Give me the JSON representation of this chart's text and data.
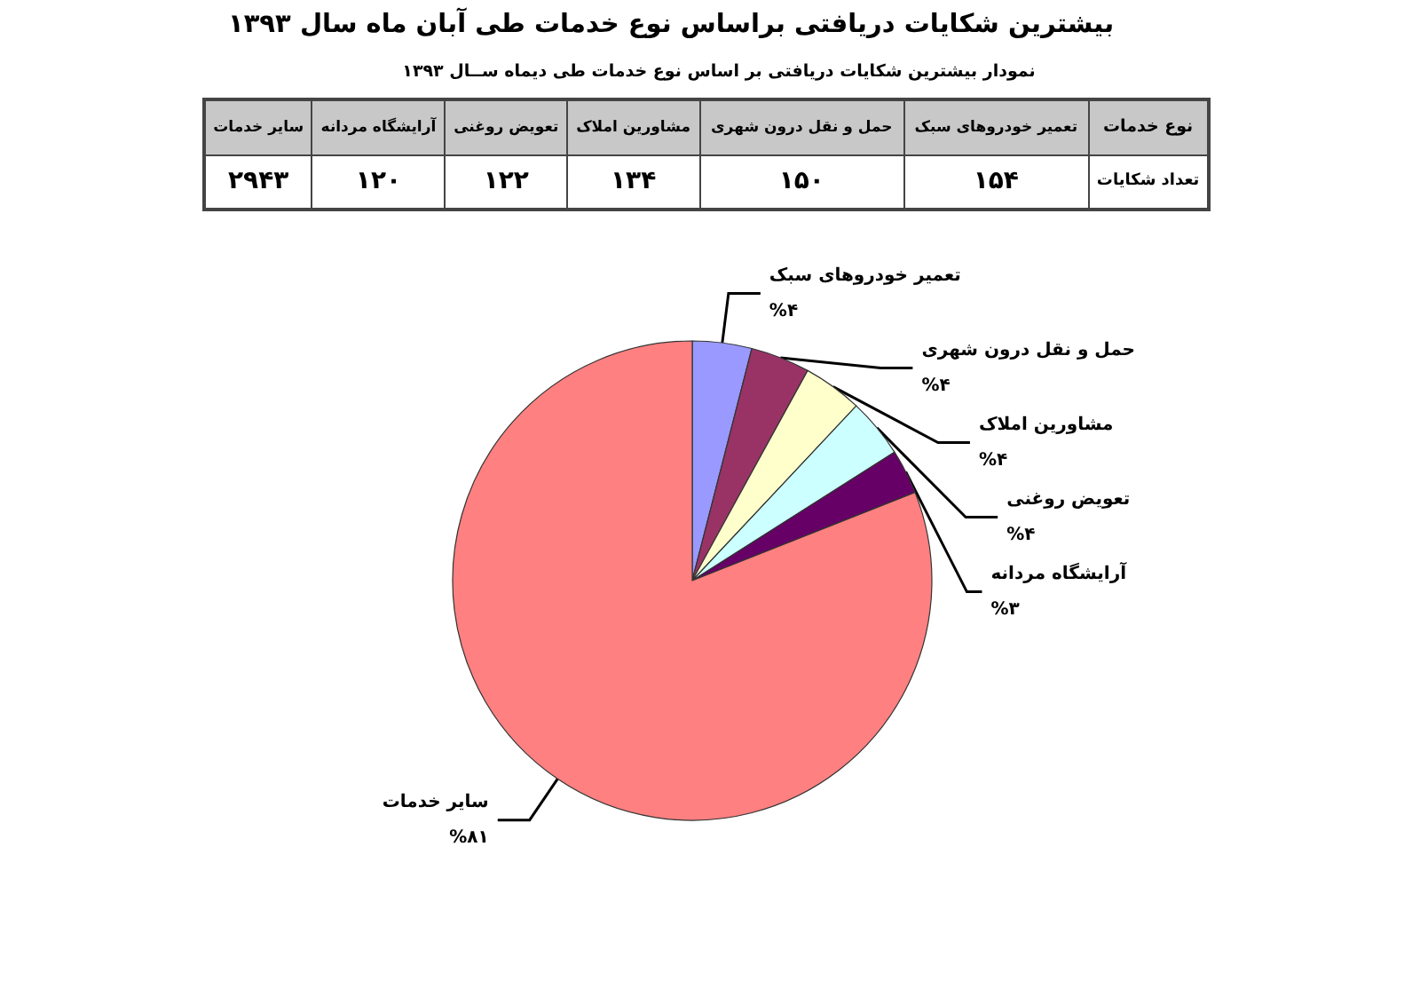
{
  "chart_data": [
    {
      "type": "other",
      "title": "بیشترین شکایات دریافتی براساس نوع خدمات  طی آبان ماه سال ۱۳۹۳",
      "subtitle": "نمودار بیشترین شکایات دریافتی بر اساس نوع خدمات طی دیماه ســال ۱۳۹۳",
      "categories": [
        "تعمیر خودروهای سبک",
        "حمل و نقل درون شهری",
        "مشاورین املاک",
        "تعویض روغنی",
        "آرایشگاه مردانه",
        "سایر خدمات"
      ],
      "values": [
        154,
        150,
        134,
        122,
        120,
        2943
      ],
      "value_labels": [
        "۱۵۴",
        "۱۵۰",
        "۱۳۴",
        "۱۲۲",
        "۱۲۰",
        "۲۹۴۳"
      ],
      "annotations": [
        "نوع خدمات",
        "تعداد شکایات"
      ]
    },
    {
      "type": "pie",
      "categories": [
        "تعمیر خودروهای سبک",
        "حمل و نقل درون شهری",
        "مشاورین املاک",
        "تعویض روغنی",
        "آرایشگاه مردانه",
        "سایر خدمات"
      ],
      "values": [
        4,
        4,
        4,
        4,
        3,
        81
      ],
      "colors": [
        "#9999ff",
        "#993366",
        "#ffffcc",
        "#ccffff",
        "#660066",
        "#ff8080"
      ],
      "value_labels": [
        "%۴",
        "%۴",
        "%۴",
        "%۴",
        "%۳",
        "%۸۱"
      ]
    }
  ]
}
